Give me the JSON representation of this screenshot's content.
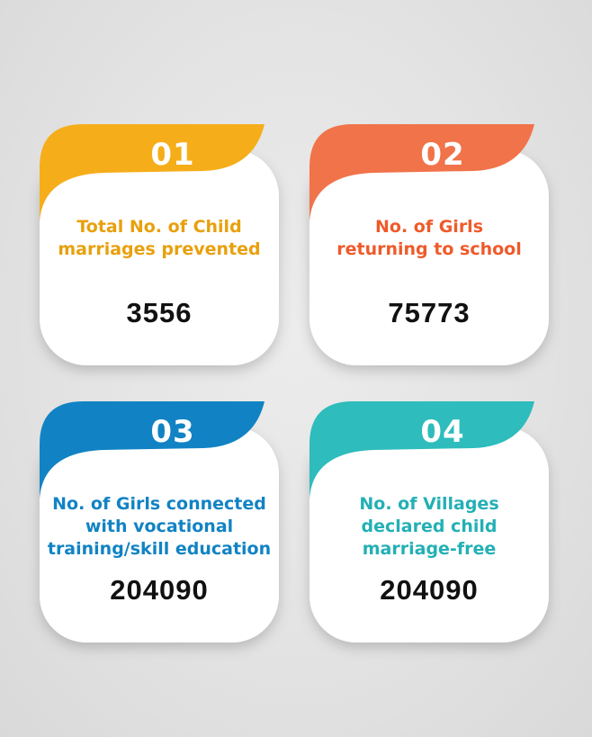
{
  "cards": [
    {
      "number": "01",
      "label_lines": [
        "Total No. of Child",
        "marriages prevented"
      ],
      "value": "3556",
      "color": "#f5ae1a"
    },
    {
      "number": "02",
      "label_lines": [
        "No. of Girls",
        "returning to school"
      ],
      "value": "75773",
      "color": "#f1734a"
    },
    {
      "number": "03",
      "label_lines": [
        "No. of Girls connected",
        "with vocational",
        "training/skill education"
      ],
      "value": "204090",
      "color": "#1183c4"
    },
    {
      "number": "04",
      "label_lines": [
        "No. of Villages",
        "declared child",
        "marriage-free"
      ],
      "value": "204090",
      "color": "#2ebcbc"
    }
  ]
}
